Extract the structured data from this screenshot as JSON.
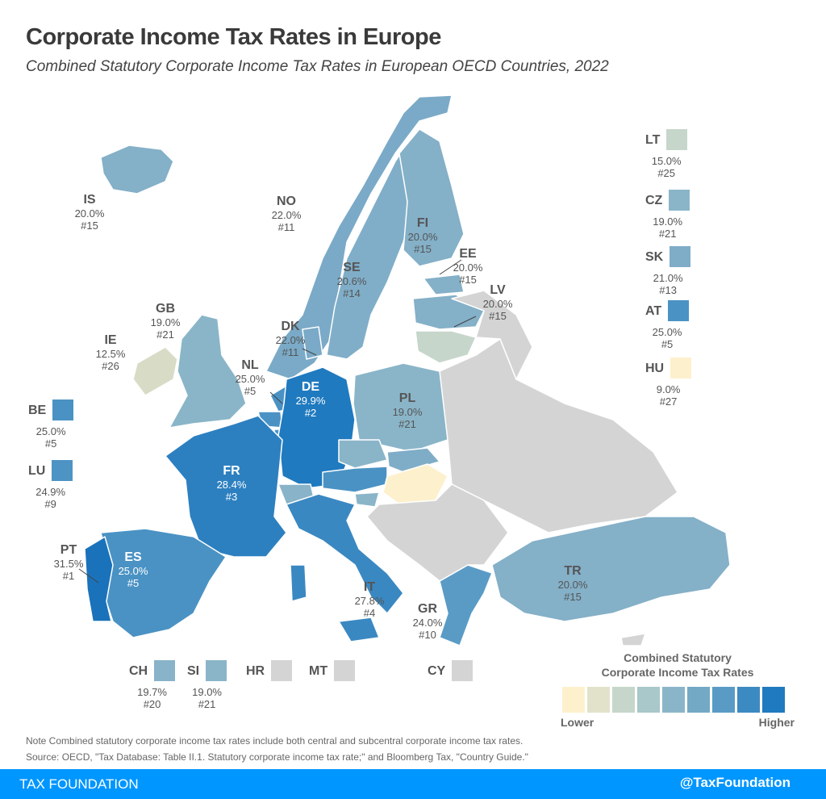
{
  "title": "Corporate Income Tax Rates in Europe",
  "subtitle": "Combined Statutory Corporate Income Tax Rates in European OECD Countries, 2022",
  "colors": {
    "non_oecd": "#d4d4d4",
    "footer": "#0096ff",
    "scale": [
      "#fdf0cc",
      "#e2e2cb",
      "#c6d6cb",
      "#a8c8c9",
      "#8ab5c8",
      "#74a9c6",
      "#5a9bc6",
      "#3c8ac2",
      "#1f7abf"
    ]
  },
  "countries": [
    {
      "code": "IS",
      "rate": "20.0%",
      "rank": "#15",
      "color": "#84b0c8"
    },
    {
      "code": "NO",
      "rate": "22.0%",
      "rank": "#11",
      "color": "#7aaac7"
    },
    {
      "code": "FI",
      "rate": "20.0%",
      "rank": "#15",
      "color": "#84b0c8"
    },
    {
      "code": "SE",
      "rate": "20.6%",
      "rank": "#14",
      "color": "#80aec8"
    },
    {
      "code": "EE",
      "rate": "20.0%",
      "rank": "#15",
      "color": "#84b0c8"
    },
    {
      "code": "LV",
      "rate": "20.0%",
      "rank": "#15",
      "color": "#84b0c8"
    },
    {
      "code": "DK",
      "rate": "22.0%",
      "rank": "#11",
      "color": "#7aaac7"
    },
    {
      "code": "GB",
      "rate": "19.0%",
      "rank": "#21",
      "color": "#8ab5c8"
    },
    {
      "code": "IE",
      "rate": "12.5%",
      "rank": "#26",
      "color": "#d8dcc6"
    },
    {
      "code": "NL",
      "rate": "25.0%",
      "rank": "#5",
      "color": "#4a92c4"
    },
    {
      "code": "DE",
      "rate": "29.9%",
      "rank": "#2",
      "color": "#1f7abf"
    },
    {
      "code": "PL",
      "rate": "19.0%",
      "rank": "#21",
      "color": "#8ab5c8"
    },
    {
      "code": "FR",
      "rate": "28.4%",
      "rank": "#3",
      "color": "#2d80c0"
    },
    {
      "code": "PT",
      "rate": "31.5%",
      "rank": "#1",
      "color": "#1a72bb"
    },
    {
      "code": "ES",
      "rate": "25.0%",
      "rank": "#5",
      "color": "#4a92c4"
    },
    {
      "code": "IT",
      "rate": "27.8%",
      "rank": "#4",
      "color": "#3a88c2"
    },
    {
      "code": "GR",
      "rate": "24.0%",
      "rank": "#10",
      "color": "#5a9bc6"
    },
    {
      "code": "TR",
      "rate": "20.0%",
      "rank": "#15",
      "color": "#84b0c8"
    }
  ],
  "side_keys": [
    {
      "code": "LT",
      "rate": "15.0%",
      "rank": "#25",
      "color": "#c6d6cb"
    },
    {
      "code": "CZ",
      "rate": "19.0%",
      "rank": "#21",
      "color": "#8ab5c8"
    },
    {
      "code": "SK",
      "rate": "21.0%",
      "rank": "#13",
      "color": "#7fadc7"
    },
    {
      "code": "AT",
      "rate": "25.0%",
      "rank": "#5",
      "color": "#4a92c4"
    },
    {
      "code": "HU",
      "rate": "9.0%",
      "rank": "#27",
      "color": "#fdf0cc"
    },
    {
      "code": "BE",
      "rate": "25.0%",
      "rank": "#5",
      "color": "#4a92c4"
    },
    {
      "code": "LU",
      "rate": "24.9%",
      "rank": "#9",
      "color": "#4d94c4"
    },
    {
      "code": "CH",
      "rate": "19.7%",
      "rank": "#20",
      "color": "#88b3c8"
    },
    {
      "code": "SI",
      "rate": "19.0%",
      "rank": "#21",
      "color": "#8ab5c8"
    },
    {
      "code": "HR",
      "rate": "",
      "rank": "",
      "color": "#d4d4d4"
    },
    {
      "code": "MT",
      "rate": "",
      "rank": "",
      "color": "#d4d4d4"
    },
    {
      "code": "CY",
      "rate": "",
      "rank": "",
      "color": "#d4d4d4"
    }
  ],
  "legend": {
    "title_line1": "Combined Statutory",
    "title_line2": "Corporate Income Tax Rates",
    "low": "Lower",
    "high": "Higher"
  },
  "note": "Note Combined statutory corporate income tax rates include both central and subcentral corporate income tax rates.",
  "source": "Source: OECD, \"Tax Database: Table II.1. Statutory corporate income tax rate;\" and Bloomberg Tax, \"Country Guide.\"",
  "footer": {
    "left": "TAX FOUNDATION",
    "right": "@TaxFoundation"
  }
}
